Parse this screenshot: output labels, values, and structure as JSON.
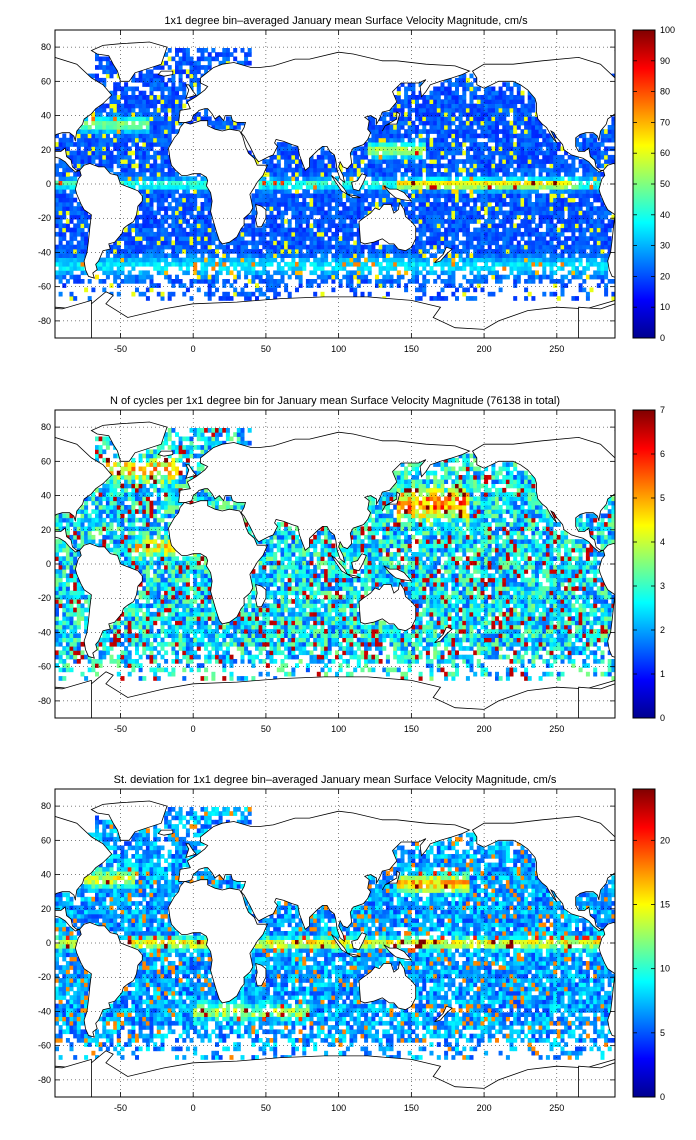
{
  "chart_data": [
    {
      "type": "heatmap",
      "title": "1x1 degree bin–averaged January mean Surface Velocity Magnitude, cm/s",
      "xlim": [
        -95,
        290
      ],
      "ylim": [
        -90,
        90
      ],
      "xticks": [
        -50,
        0,
        50,
        100,
        150,
        200,
        250
      ],
      "yticks": [
        -80,
        -60,
        -40,
        -20,
        0,
        20,
        40,
        60,
        80
      ],
      "grid": true,
      "colorbar": {
        "min": 0,
        "max": 100,
        "ticks": [
          0,
          10,
          20,
          30,
          40,
          50,
          60,
          70,
          80,
          90,
          100
        ],
        "colormap": "jet"
      },
      "pattern": "speed"
    },
    {
      "type": "heatmap",
      "title": "N of cycles per 1x1 degree bin for January mean Surface Velocity Magnitude (76138 in total)",
      "xlim": [
        -95,
        290
      ],
      "ylim": [
        -90,
        90
      ],
      "xticks": [
        -50,
        0,
        50,
        100,
        150,
        200,
        250
      ],
      "yticks": [
        -80,
        -60,
        -40,
        -20,
        0,
        20,
        40,
        60,
        80
      ],
      "grid": true,
      "colorbar": {
        "min": 0,
        "max": 7,
        "ticks": [
          0,
          1,
          2,
          3,
          4,
          5,
          6,
          7
        ],
        "colormap": "jet"
      },
      "pattern": "count"
    },
    {
      "type": "heatmap",
      "title": "St. deviation for 1x1 degree bin–averaged January mean Surface Velocity Magnitude, cm/s",
      "xlim": [
        -95,
        290
      ],
      "ylim": [
        -90,
        90
      ],
      "xticks": [
        -50,
        0,
        50,
        100,
        150,
        200,
        250
      ],
      "yticks": [
        -80,
        -60,
        -40,
        -20,
        0,
        20,
        40,
        60,
        80
      ],
      "grid": true,
      "colorbar": {
        "min": 0,
        "max": 24,
        "ticks": [
          0,
          5,
          10,
          15,
          20
        ],
        "colormap": "jet"
      },
      "pattern": "std"
    }
  ]
}
